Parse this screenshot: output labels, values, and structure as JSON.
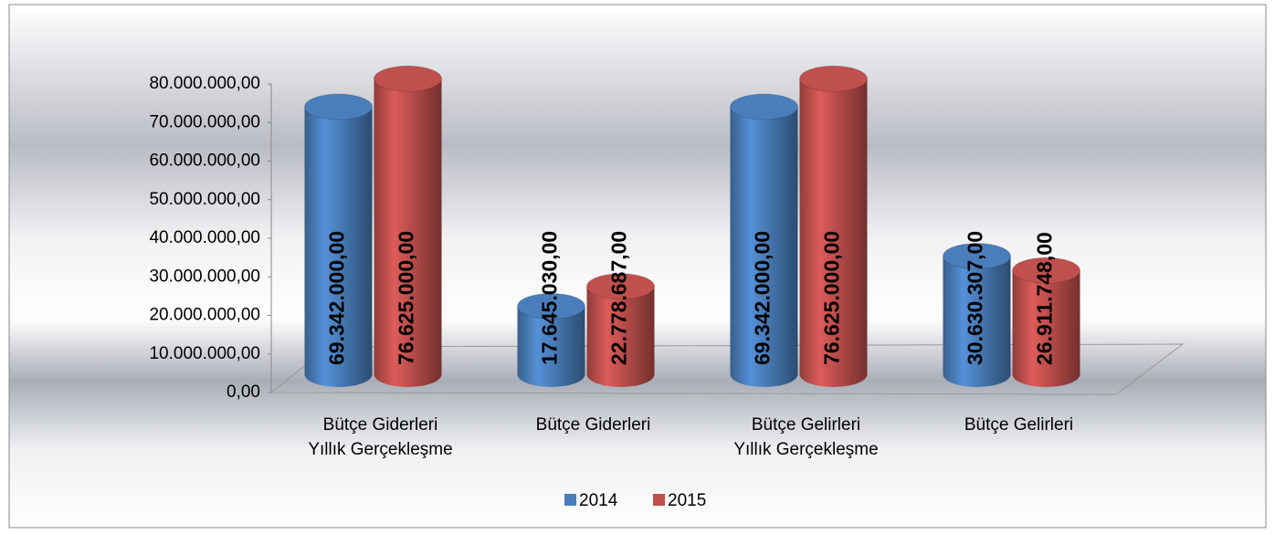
{
  "chart_data": {
    "type": "bar3d",
    "categories": [
      "Bütçe Giderleri\nYıllık Gerçekleşme",
      "Bütçe Giderleri",
      "Bütçe Gelirleri\nYıllık Gerçekleşme",
      "Bütçe Gelirleri"
    ],
    "series": [
      {
        "name": "2014",
        "color": "#4a7ebb",
        "values": [
          69342000,
          17645030,
          69342000,
          30630307
        ],
        "value_labels": [
          "69.342.000,00",
          "17.645.030,00",
          "69.342.000,00",
          "30.630.307,00"
        ]
      },
      {
        "name": "2015",
        "color": "#c0504d",
        "values": [
          76625000,
          22778687,
          76625000,
          26911748
        ],
        "value_labels": [
          "76.625.000,00",
          "22.778.687,00",
          "76.625.000,00",
          "26.911.748,00"
        ]
      }
    ],
    "ylim": [
      0,
      80000000
    ],
    "yticks": [
      {
        "value": 0,
        "label": "0,00"
      },
      {
        "value": 10000000,
        "label": "10.000.000,00"
      },
      {
        "value": 20000000,
        "label": "20.000.000,00"
      },
      {
        "value": 30000000,
        "label": "30.000.000,00"
      },
      {
        "value": 40000000,
        "label": "40.000.000,00"
      },
      {
        "value": 50000000,
        "label": "50.000.000,00"
      },
      {
        "value": 60000000,
        "label": "60.000.000,00"
      },
      {
        "value": 70000000,
        "label": "70.000.000,00"
      },
      {
        "value": 80000000,
        "label": "80.000.000,00"
      }
    ],
    "grid": false,
    "legend": "bottom"
  }
}
